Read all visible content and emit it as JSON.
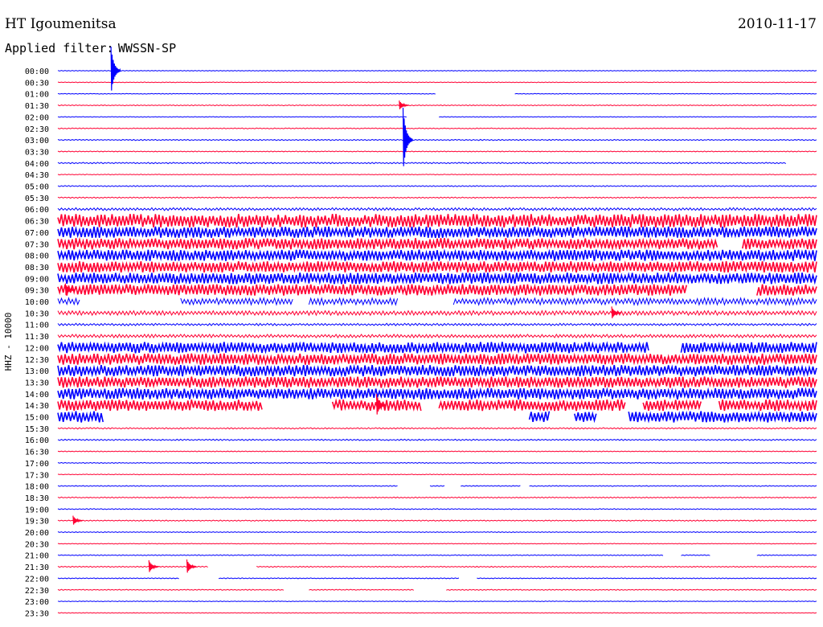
{
  "header": {
    "station": "HT Igoumenitsa",
    "date": "2010-11-17",
    "filter_label": "Applied filter:",
    "filter_name": "WWSSN-SP"
  },
  "chart_data": {
    "type": "helicorder",
    "ylabel": "HHZ - 10000",
    "colors": [
      "#0000ff",
      "#ff0033"
    ],
    "row_labels": [
      "00:00",
      "00:30",
      "01:00",
      "01:30",
      "02:00",
      "02:30",
      "03:00",
      "03:30",
      "04:00",
      "04:30",
      "05:00",
      "05:30",
      "06:00",
      "06:30",
      "07:00",
      "07:30",
      "08:00",
      "08:30",
      "09:00",
      "09:30",
      "10:00",
      "10:30",
      "11:00",
      "11:30",
      "12:00",
      "12:30",
      "13:00",
      "13:30",
      "14:00",
      "14:30",
      "15:00",
      "15:30",
      "16:00",
      "16:30",
      "17:00",
      "17:30",
      "18:00",
      "18:30",
      "19:00",
      "19:30",
      "20:00",
      "20:30",
      "21:00",
      "21:30",
      "22:00",
      "22:30",
      "23:00",
      "23:30"
    ],
    "noise_level": [
      0.3,
      0.3,
      0.3,
      0.4,
      0.3,
      0.4,
      0.5,
      0.4,
      0.6,
      0.3,
      0.5,
      0.5,
      1.2,
      6,
      5,
      5,
      5,
      5,
      5,
      5,
      3,
      2,
      1,
      1.5,
      5,
      5,
      5,
      5,
      5,
      5,
      5,
      0.6,
      0.6,
      0.4,
      0.4,
      0.3,
      0.4,
      0.5,
      0.4,
      0.5,
      0.4,
      0.3,
      0.4,
      0.5,
      0.4,
      0.4,
      0.3,
      0.3
    ],
    "gaps": [
      [],
      [],
      [
        [
          0.5,
          0.6
        ]
      ],
      [],
      [
        [
          0.46,
          0.5
        ]
      ],
      [],
      [],
      [],
      [
        [
          0.96,
          1.0
        ]
      ],
      [],
      [],
      [],
      [],
      [],
      [],
      [
        [
          0.87,
          0.9
        ]
      ],
      [],
      [],
      [],
      [
        [
          0.83,
          0.92
        ]
      ],
      [
        [
          0.03,
          0.16
        ],
        [
          0.31,
          0.33
        ],
        [
          0.45,
          0.52
        ]
      ],
      [],
      [],
      [],
      [
        [
          0.78,
          0.82
        ]
      ],
      [],
      [],
      [],
      [],
      [
        [
          0.27,
          0.36
        ],
        [
          0.48,
          0.5
        ],
        [
          0.75,
          0.77
        ],
        [
          0.85,
          0.87
        ]
      ],
      [
        [
          0.06,
          0.62
        ],
        [
          0.65,
          0.68
        ],
        [
          0.71,
          0.75
        ]
      ],
      [],
      [],
      [],
      [],
      [],
      [
        [
          0.45,
          0.49
        ],
        [
          0.51,
          0.53
        ],
        [
          0.61,
          0.62
        ]
      ],
      [],
      [],
      [],
      [],
      [],
      [
        [
          0.8,
          0.82
        ],
        [
          0.86,
          0.92
        ]
      ],
      [
        [
          0.2,
          0.26
        ]
      ],
      [
        [
          0.16,
          0.21
        ],
        [
          0.53,
          0.55
        ]
      ],
      [
        [
          0.3,
          0.33
        ],
        [
          0.47,
          0.51
        ]
      ],
      [],
      []
    ],
    "events": [
      {
        "row": 0,
        "x": 0.07,
        "amplitude": 30,
        "label": ""
      },
      {
        "row": 3,
        "x": 0.45,
        "amplitude": 6,
        "label": ""
      },
      {
        "row": 6,
        "x": 0.455,
        "amplitude": 40,
        "label": ""
      },
      {
        "row": 19,
        "x": 0.01,
        "amplitude": 8,
        "label": ""
      },
      {
        "row": 21,
        "x": 0.73,
        "amplitude": 8,
        "label": ""
      },
      {
        "row": 29,
        "x": 0.42,
        "amplitude": 14,
        "label": ""
      },
      {
        "row": 39,
        "x": 0.02,
        "amplitude": 6,
        "label": ""
      },
      {
        "row": 43,
        "x": 0.12,
        "amplitude": 8,
        "label": ""
      },
      {
        "row": 43,
        "x": 0.17,
        "amplitude": 9,
        "label": ""
      }
    ]
  }
}
